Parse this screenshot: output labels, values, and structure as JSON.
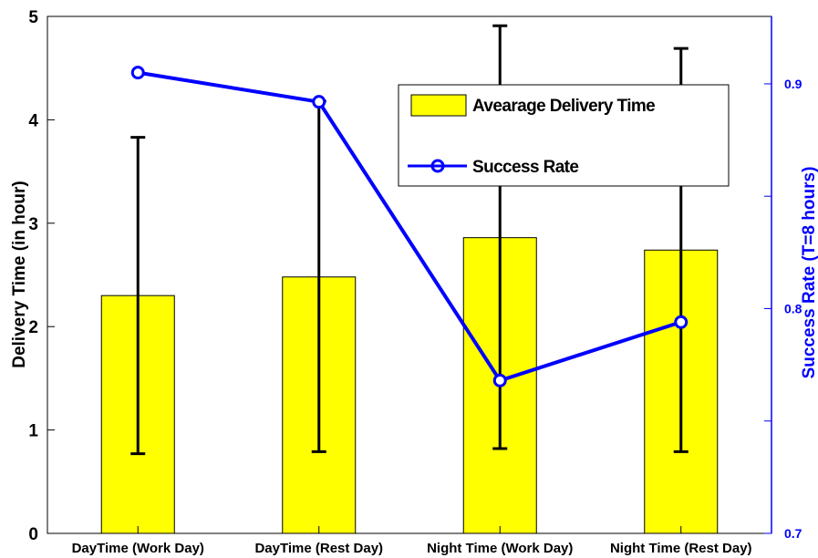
{
  "chart_data": {
    "type": "bar",
    "categories": [
      "DayTime (Work Day)",
      "DayTime (Rest Day)",
      "Night Time (Work Day)",
      "Night Time (Rest Day)"
    ],
    "series": [
      {
        "name": "Avearage Delivery Time",
        "axis": "left",
        "type": "bar",
        "values": [
          2.3,
          2.48,
          2.86,
          2.74
        ],
        "error_low": [
          0.77,
          0.79,
          0.82,
          0.79
        ],
        "error_high": [
          3.83,
          4.18,
          4.91,
          4.69
        ],
        "color": "#ffff00"
      },
      {
        "name": "Success Rate",
        "axis": "right",
        "type": "line",
        "values": [
          0.905,
          0.892,
          0.768,
          0.794
        ],
        "color": "#0000ff"
      }
    ],
    "ylabel": "Delivery Time (in hour)",
    "ylabel_right": "Success Rate (T=8 hours)",
    "ylim": [
      0,
      5
    ],
    "yticks": [
      "0",
      "1",
      "2",
      "3",
      "4",
      "5"
    ],
    "ylim_right": [
      0.7,
      0.93
    ],
    "yticks_right": [
      "0.7",
      "0.8",
      "0.9"
    ],
    "legend_position": "top-right",
    "grid": false
  }
}
